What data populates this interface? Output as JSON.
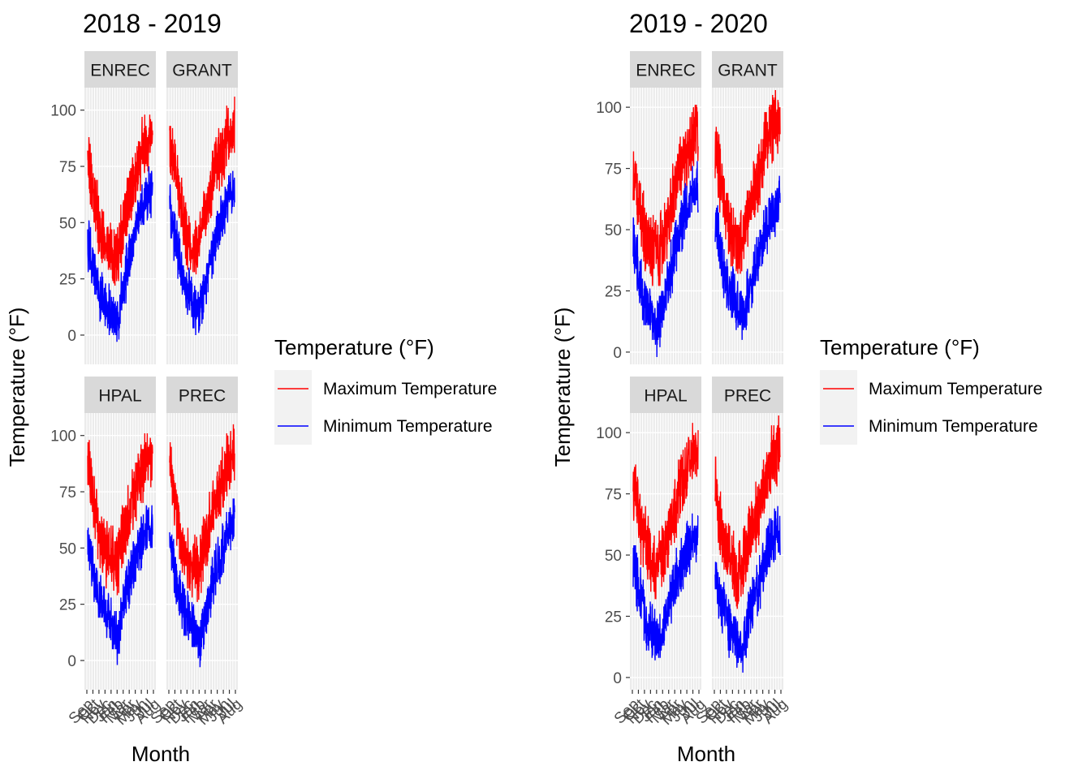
{
  "colors": {
    "panel_bg": "#ebebeb",
    "strip_bg": "#d9d9d9",
    "grid_major": "#ffffff",
    "axis_text": "#4d4d4d",
    "text": "#000000",
    "max_line": "#ff0000",
    "min_line": "#0000ff"
  },
  "chart_data": [
    {
      "type": "line",
      "title": "2018 - 2019",
      "xlabel": "Month",
      "ylabel": "Temperature (°F)",
      "legend": {
        "title": "Temperature (°F)",
        "position": "right",
        "entries": [
          "Maximum Temperature",
          "Minimum Temperature"
        ]
      },
      "facets": [
        "ENREC",
        "GRANT",
        "HPAL",
        "PREC"
      ],
      "ylim": [
        -13,
        110
      ],
      "yticks": [
        0,
        25,
        50,
        75,
        100
      ],
      "x_tick_labels": [
        "Sep",
        "Oct",
        "Nov",
        "Dec",
        "Jan",
        "Feb",
        "Mar",
        "Apr",
        "May",
        "Jun",
        "Jul",
        "Aug"
      ],
      "grid": true,
      "series_profile_by_month": {
        "ENREC": {
          "Maximum Temperature": [
            78,
            62,
            48,
            40,
            38,
            36,
            48,
            62,
            70,
            80,
            85,
            90
          ],
          "Minimum Temperature": [
            42,
            30,
            18,
            12,
            10,
            5,
            20,
            35,
            45,
            55,
            62,
            65
          ]
        },
        "GRANT": {
          "Maximum Temperature": [
            88,
            72,
            55,
            42,
            40,
            42,
            55,
            65,
            75,
            80,
            90,
            95
          ],
          "Minimum Temperature": [
            58,
            42,
            28,
            20,
            15,
            10,
            22,
            35,
            45,
            52,
            60,
            65
          ]
        },
        "HPAL": {
          "Maximum Temperature": [
            90,
            72,
            55,
            48,
            45,
            42,
            55,
            65,
            75,
            82,
            88,
            92
          ],
          "Minimum Temperature": [
            55,
            40,
            28,
            22,
            18,
            10,
            25,
            35,
            45,
            52,
            58,
            62
          ]
        },
        "PREC": {
          "Maximum Temperature": [
            88,
            70,
            52,
            45,
            42,
            40,
            52,
            62,
            72,
            80,
            88,
            92
          ],
          "Minimum Temperature": [
            55,
            38,
            25,
            20,
            15,
            5,
            20,
            32,
            42,
            50,
            58,
            62
          ]
        }
      }
    },
    {
      "type": "line",
      "title": "2019 - 2020",
      "xlabel": "Month",
      "ylabel": "Temperature (°F)",
      "legend": {
        "title": "Temperature (°F)",
        "position": "right",
        "entries": [
          "Maximum Temperature",
          "Minimum Temperature"
        ]
      },
      "facets": [
        "ENREC",
        "GRANT",
        "HPAL",
        "PREC"
      ],
      "ylim": [
        -5,
        108
      ],
      "yticks": [
        0,
        25,
        50,
        75,
        100
      ],
      "x_tick_labels": [
        "Sep",
        "Oct",
        "Nov",
        "Dec",
        "Jan",
        "Feb",
        "Mar",
        "Apr",
        "May",
        "Jun",
        "Jul",
        "Aug"
      ],
      "grid": true,
      "series_profile_by_month": {
        "ENREC": {
          "Maximum Temperature": [
            75,
            60,
            48,
            42,
            40,
            45,
            58,
            65,
            75,
            82,
            88,
            90
          ],
          "Minimum Temperature": [
            48,
            32,
            20,
            15,
            10,
            15,
            30,
            40,
            50,
            58,
            65,
            68
          ]
        },
        "GRANT": {
          "Maximum Temperature": [
            85,
            70,
            55,
            45,
            42,
            48,
            58,
            68,
            78,
            88,
            92,
            95
          ],
          "Minimum Temperature": [
            55,
            40,
            28,
            22,
            18,
            15,
            28,
            35,
            45,
            52,
            58,
            62
          ]
        },
        "HPAL": {
          "Maximum Temperature": [
            80,
            65,
            55,
            48,
            45,
            50,
            58,
            68,
            78,
            88,
            92,
            95
          ],
          "Minimum Temperature": [
            48,
            35,
            25,
            20,
            15,
            18,
            30,
            38,
            45,
            52,
            55,
            58
          ]
        },
        "PREC": {
          "Maximum Temperature": [
            78,
            62,
            50,
            45,
            42,
            48,
            58,
            65,
            75,
            85,
            92,
            95
          ],
          "Minimum Temperature": [
            45,
            32,
            22,
            18,
            12,
            15,
            28,
            35,
            45,
            52,
            58,
            60
          ]
        }
      }
    }
  ]
}
